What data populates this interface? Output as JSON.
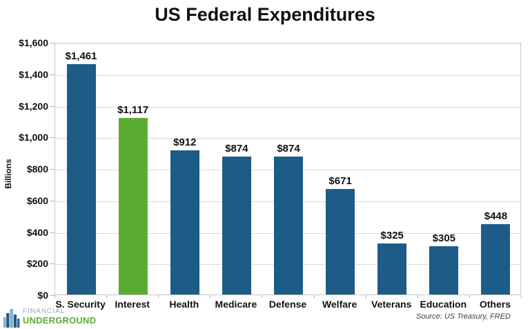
{
  "title": "US Federal Expenditures",
  "source": "Source: US Treasury, FRED",
  "logo": {
    "line1": "FINANCIAL",
    "line2": "UNDERGROUND",
    "icon": "building-skyline-icon"
  },
  "colors": {
    "bar_blue": "#1d5c87",
    "bar_green": "#5bad31",
    "gridline": "#d9d9d9",
    "axis_tick": "#adadad",
    "title_text": "#111111",
    "logo_gray": "#9aa8b5",
    "logo_green": "#5bad31"
  },
  "chart_data": {
    "type": "bar",
    "title": "US Federal Expenditures",
    "xlabel": "",
    "ylabel": "Billions",
    "categories": [
      "S. Security",
      "Interest",
      "Health",
      "Medicare",
      "Defense",
      "Welfare",
      "Veterans",
      "Education",
      "Others"
    ],
    "values": [
      1461,
      1117,
      912,
      874,
      874,
      671,
      325,
      305,
      448
    ],
    "value_labels": [
      "$1,461",
      "$1,117",
      "$912",
      "$874",
      "$874",
      "$671",
      "$325",
      "$305",
      "$448"
    ],
    "highlight_index": 1,
    "ylim": [
      0,
      1600
    ],
    "ytick_step": 200,
    "ytick_labels": [
      "$0",
      "$200",
      "$400",
      "$600",
      "$800",
      "$1,000",
      "$1,200",
      "$1,400",
      "$1,600"
    ],
    "grid": true,
    "legend": false
  }
}
